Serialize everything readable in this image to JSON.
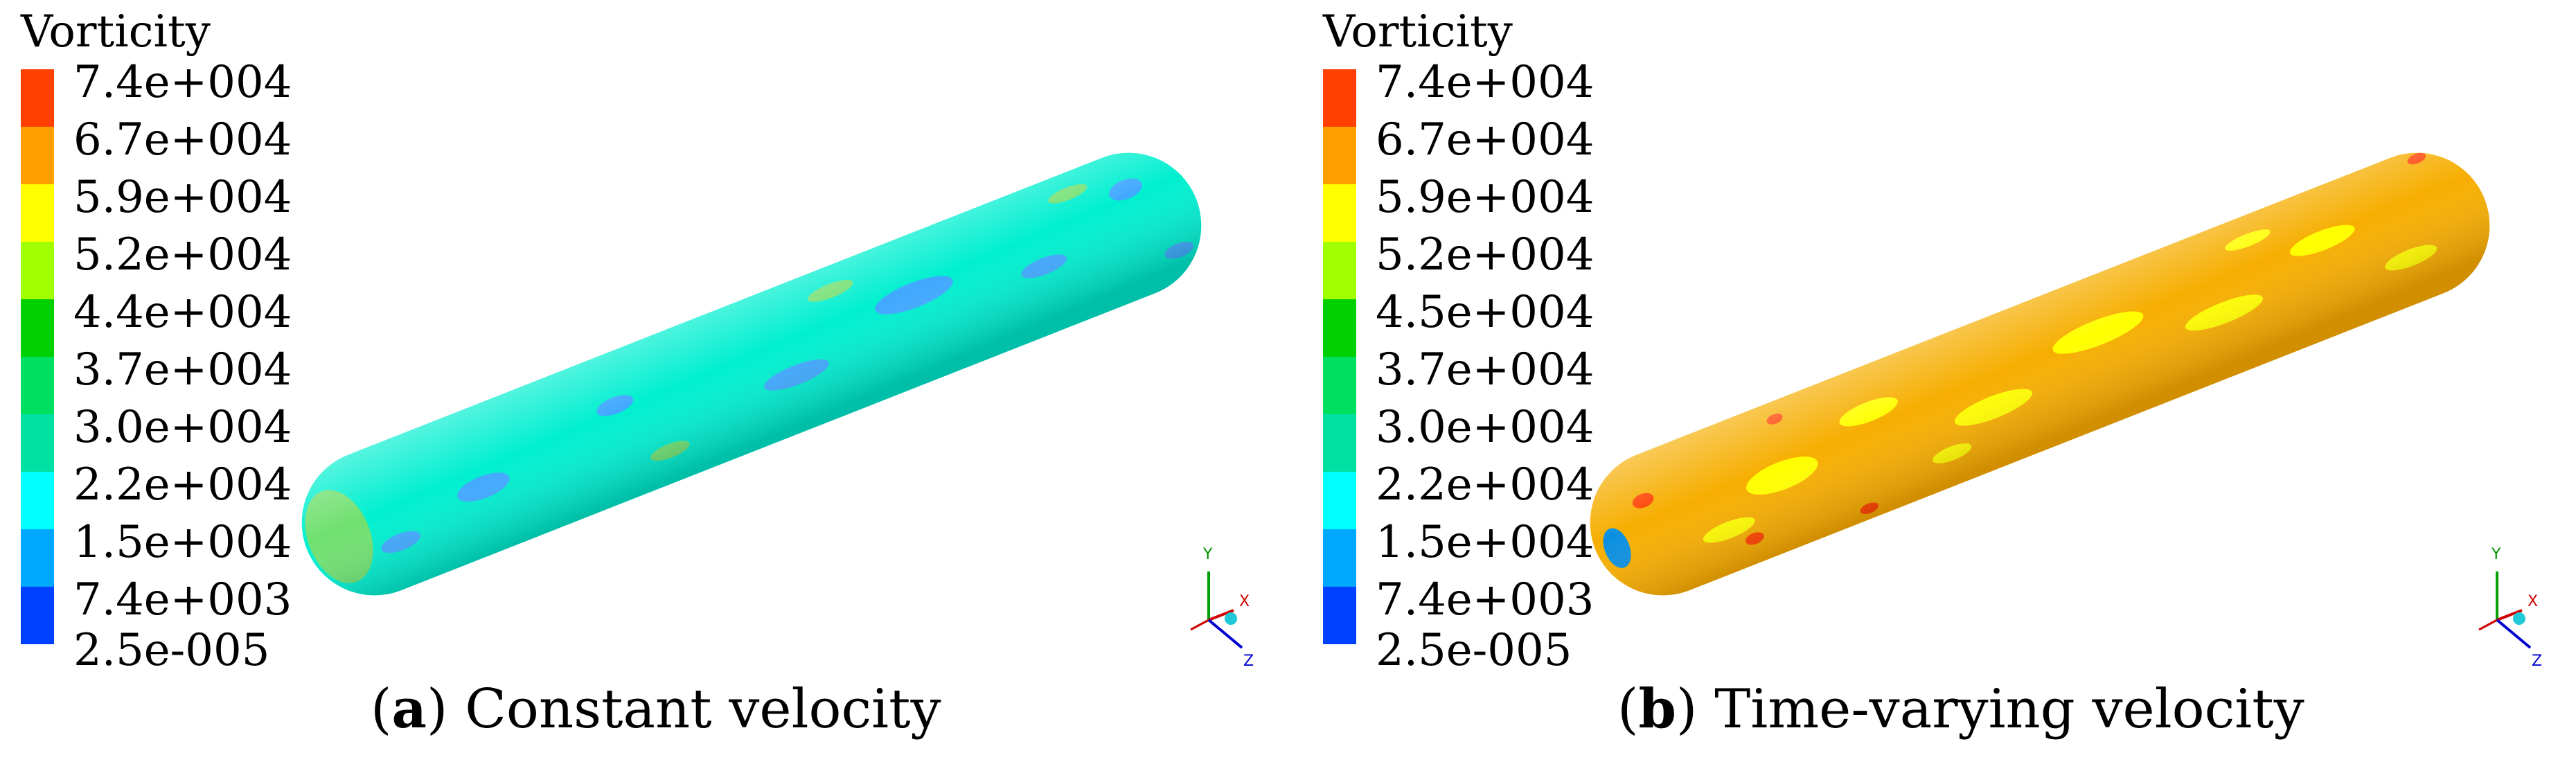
{
  "colorbar_colors": [
    "#ff4000",
    "#ff9f00",
    "#ffff00",
    "#a0ff00",
    "#00d000",
    "#00e060",
    "#00e0a0",
    "#00ffff",
    "#00a8ff",
    "#0040ff"
  ],
  "panels": [
    {
      "legend_title": "Vorticity",
      "ticks": [
        "7.4e+004",
        "6.7e+004",
        "5.9e+004",
        "5.2e+004",
        "4.4e+004",
        "3.7e+004",
        "3.0e+004",
        "2.2e+004",
        "1.5e+004",
        "7.4e+003",
        "2.5e-005"
      ],
      "caption_letter": "a",
      "caption_text": "Constant velocity",
      "body_color": "#00efd0",
      "patch_color": "#40a8ff",
      "patch2_color": "#70e070"
    },
    {
      "legend_title": "Vorticity",
      "ticks": [
        "7.4e+004",
        "6.7e+004",
        "5.9e+004",
        "5.2e+004",
        "4.5e+004",
        "3.7e+004",
        "3.0e+004",
        "2.2e+004",
        "1.5e+004",
        "7.4e+003",
        "2.5e-005"
      ],
      "caption_letter": "b",
      "caption_text": "Time-varying velocity",
      "body_color": "#f6ae00",
      "patch_color": "#ffff00",
      "patch2_color": "#ff4000"
    }
  ],
  "triad": {
    "x": "X",
    "y": "Y",
    "z": "Z"
  }
}
